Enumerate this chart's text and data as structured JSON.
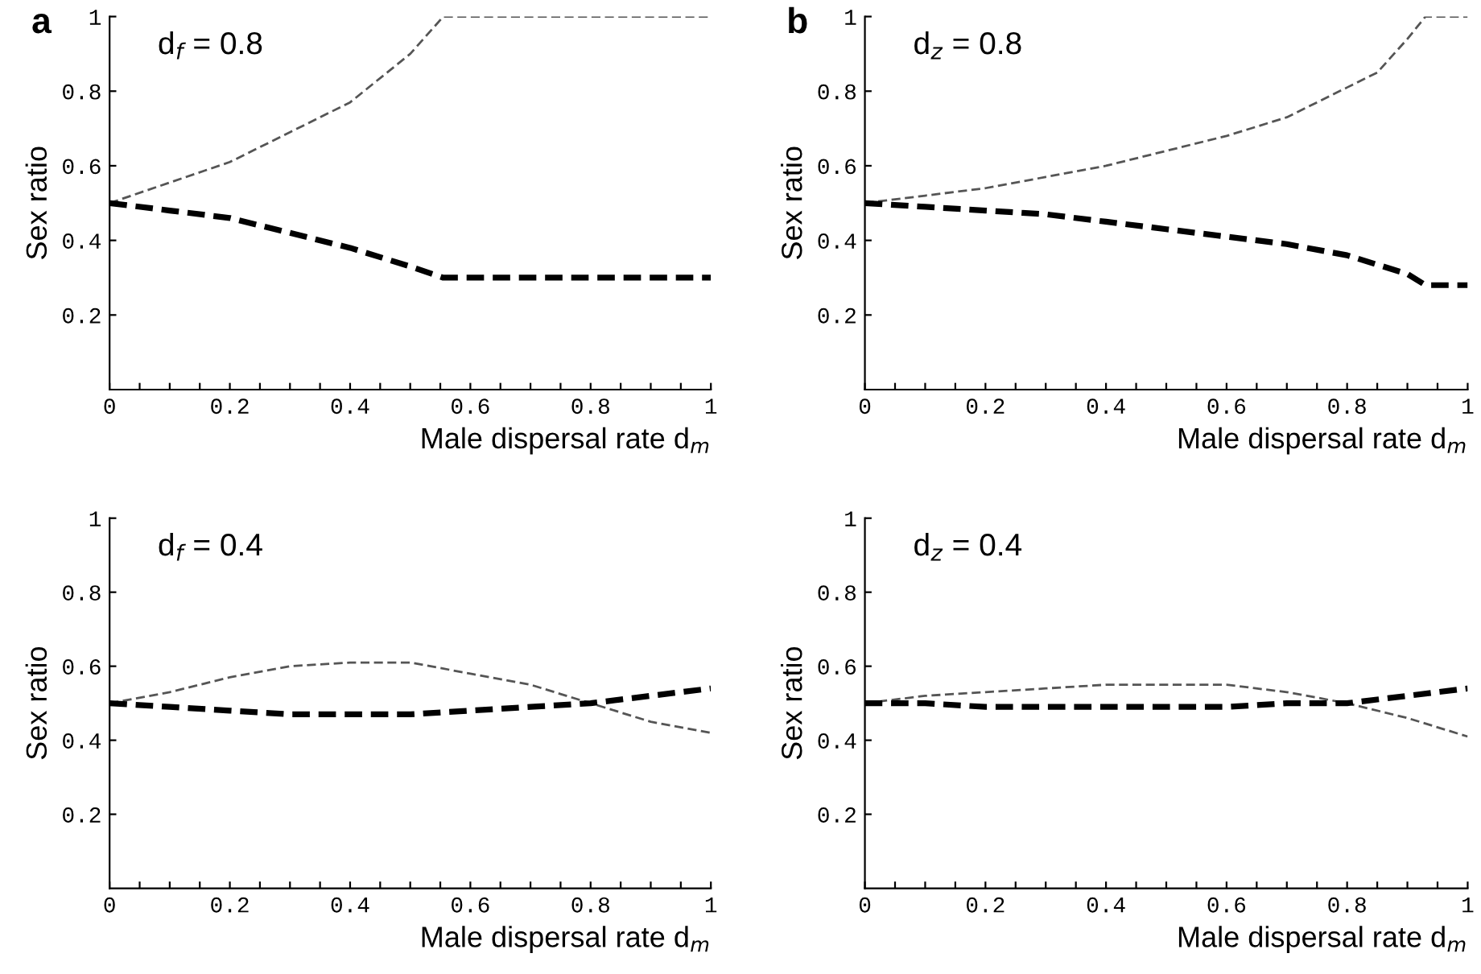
{
  "chart_data": [
    {
      "type": "line",
      "title": "a",
      "xlabel": "Male dispersal rate d$_{m}$",
      "ylabel": "Sex ratio",
      "annotations": [
        "d$_{f}$ = 0.8"
      ],
      "line_style": "dashed",
      "xlim": [
        0,
        1
      ],
      "ylim": [
        0,
        1
      ],
      "xticks": [
        0,
        {
          "value": 0.05,
          "label": null
        },
        {
          "value": 0.1,
          "label": null
        },
        {
          "value": 0.15,
          "label": null
        },
        0.2,
        {
          "value": 0.25,
          "label": null
        },
        {
          "value": 0.3,
          "label": null
        },
        {
          "value": 0.35,
          "label": null
        },
        0.4,
        {
          "value": 0.45,
          "label": null
        },
        {
          "value": 0.5,
          "label": null
        },
        {
          "value": 0.55,
          "label": null
        },
        0.6,
        {
          "value": 0.65,
          "label": null
        },
        {
          "value": 0.7,
          "label": null
        },
        {
          "value": 0.75,
          "label": null
        },
        0.8,
        {
          "value": 0.85,
          "label": null
        },
        {
          "value": 0.9,
          "label": null
        },
        {
          "value": 0.95,
          "label": null
        },
        1
      ],
      "yticks": [
        0.2,
        0.4,
        0.6,
        0.8,
        1
      ],
      "series": [
        {
          "color": "#555555",
          "x": [
            0,
            0.1,
            0.2,
            0.3,
            0.4,
            0.5,
            0.555,
            1
          ],
          "values": [
            0.5,
            0.555,
            0.61,
            0.69,
            0.77,
            0.9,
            1.0,
            1.0
          ]
        },
        {
          "color": "#000000",
          "x": [
            0,
            0.1,
            0.2,
            0.3,
            0.4,
            0.5,
            0.555,
            1
          ],
          "values": [
            0.5,
            0.48,
            0.46,
            0.42,
            0.38,
            0.33,
            0.3,
            0.3
          ]
        }
      ]
    },
    {
      "type": "line",
      "title": "b",
      "xlabel": "Male dispersal rate d$_{m}$",
      "ylabel": "Sex ratio",
      "annotations": [
        "d$_{z}$ = 0.8"
      ],
      "line_style": "dashed",
      "xlim": [
        0,
        1
      ],
      "ylim": [
        0,
        1
      ],
      "xticks": [
        0,
        {
          "value": 0.05,
          "label": null
        },
        {
          "value": 0.1,
          "label": null
        },
        {
          "value": 0.15,
          "label": null
        },
        0.2,
        {
          "value": 0.25,
          "label": null
        },
        {
          "value": 0.3,
          "label": null
        },
        {
          "value": 0.35,
          "label": null
        },
        0.4,
        {
          "value": 0.45,
          "label": null
        },
        {
          "value": 0.5,
          "label": null
        },
        {
          "value": 0.55,
          "label": null
        },
        0.6,
        {
          "value": 0.65,
          "label": null
        },
        {
          "value": 0.7,
          "label": null
        },
        {
          "value": 0.75,
          "label": null
        },
        0.8,
        {
          "value": 0.85,
          "label": null
        },
        {
          "value": 0.9,
          "label": null
        },
        {
          "value": 0.95,
          "label": null
        },
        1
      ],
      "yticks": [
        0.2,
        0.4,
        0.6,
        0.8,
        1
      ],
      "series": [
        {
          "color": "#555555",
          "x": [
            0,
            0.1,
            0.2,
            0.3,
            0.4,
            0.5,
            0.6,
            0.7,
            0.8,
            0.85,
            0.9,
            0.93,
            1
          ],
          "values": [
            0.5,
            0.52,
            0.54,
            0.57,
            0.6,
            0.64,
            0.68,
            0.73,
            0.81,
            0.85,
            0.94,
            1.0,
            1.0
          ]
        },
        {
          "color": "#000000",
          "x": [
            0,
            0.1,
            0.2,
            0.3,
            0.4,
            0.5,
            0.6,
            0.7,
            0.8,
            0.9,
            0.93,
            1
          ],
          "values": [
            0.5,
            0.49,
            0.48,
            0.47,
            0.45,
            0.43,
            0.41,
            0.39,
            0.36,
            0.31,
            0.28,
            0.28
          ]
        }
      ]
    },
    {
      "type": "line",
      "xlabel": "Male dispersal rate d$_{m}$",
      "ylabel": "Sex ratio",
      "annotations": [
        "d$_{f}$ = 0.4"
      ],
      "line_style": "dashed",
      "xlim": [
        0,
        1
      ],
      "ylim": [
        0,
        1
      ],
      "xticks": [
        0,
        {
          "value": 0.05,
          "label": null
        },
        {
          "value": 0.1,
          "label": null
        },
        {
          "value": 0.15,
          "label": null
        },
        0.2,
        {
          "value": 0.25,
          "label": null
        },
        {
          "value": 0.3,
          "label": null
        },
        {
          "value": 0.35,
          "label": null
        },
        0.4,
        {
          "value": 0.45,
          "label": null
        },
        {
          "value": 0.5,
          "label": null
        },
        {
          "value": 0.55,
          "label": null
        },
        0.6,
        {
          "value": 0.65,
          "label": null
        },
        {
          "value": 0.7,
          "label": null
        },
        {
          "value": 0.75,
          "label": null
        },
        0.8,
        {
          "value": 0.85,
          "label": null
        },
        {
          "value": 0.9,
          "label": null
        },
        {
          "value": 0.95,
          "label": null
        },
        1
      ],
      "yticks": [
        0.2,
        0.4,
        0.6,
        0.8,
        1
      ],
      "series": [
        {
          "color": "#555555",
          "x": [
            0,
            0.1,
            0.2,
            0.3,
            0.4,
            0.45,
            0.5,
            0.6,
            0.7,
            0.8,
            0.9,
            1
          ],
          "values": [
            0.5,
            0.53,
            0.57,
            0.6,
            0.61,
            0.61,
            0.61,
            0.58,
            0.55,
            0.5,
            0.45,
            0.42
          ]
        },
        {
          "color": "#000000",
          "x": [
            0,
            0.1,
            0.2,
            0.3,
            0.4,
            0.5,
            0.6,
            0.7,
            0.8,
            0.9,
            1
          ],
          "values": [
            0.5,
            0.49,
            0.48,
            0.47,
            0.47,
            0.47,
            0.48,
            0.49,
            0.5,
            0.52,
            0.54
          ]
        }
      ]
    },
    {
      "type": "line",
      "xlabel": "Male dispersal rate d$_{m}$",
      "ylabel": "Sex ratio",
      "annotations": [
        "d$_{z}$ = 0.4"
      ],
      "line_style": "dashed",
      "xlim": [
        0,
        1
      ],
      "ylim": [
        0,
        1
      ],
      "xticks": [
        0,
        {
          "value": 0.05,
          "label": null
        },
        {
          "value": 0.1,
          "label": null
        },
        {
          "value": 0.15,
          "label": null
        },
        0.2,
        {
          "value": 0.25,
          "label": null
        },
        {
          "value": 0.3,
          "label": null
        },
        {
          "value": 0.35,
          "label": null
        },
        0.4,
        {
          "value": 0.45,
          "label": null
        },
        {
          "value": 0.5,
          "label": null
        },
        {
          "value": 0.55,
          "label": null
        },
        0.6,
        {
          "value": 0.65,
          "label": null
        },
        {
          "value": 0.7,
          "label": null
        },
        {
          "value": 0.75,
          "label": null
        },
        0.8,
        {
          "value": 0.85,
          "label": null
        },
        {
          "value": 0.9,
          "label": null
        },
        {
          "value": 0.95,
          "label": null
        },
        1
      ],
      "yticks": [
        0.2,
        0.4,
        0.6,
        0.8,
        1
      ],
      "series": [
        {
          "color": "#555555",
          "x": [
            0,
            0.1,
            0.2,
            0.3,
            0.4,
            0.5,
            0.6,
            0.7,
            0.8,
            0.9,
            1
          ],
          "values": [
            0.5,
            0.52,
            0.53,
            0.54,
            0.55,
            0.55,
            0.55,
            0.53,
            0.5,
            0.46,
            0.41
          ]
        },
        {
          "color": "#000000",
          "x": [
            0,
            0.1,
            0.2,
            0.3,
            0.4,
            0.5,
            0.6,
            0.7,
            0.8,
            0.9,
            1
          ],
          "values": [
            0.5,
            0.5,
            0.49,
            0.49,
            0.49,
            0.49,
            0.49,
            0.5,
            0.5,
            0.52,
            0.54
          ]
        }
      ]
    }
  ]
}
